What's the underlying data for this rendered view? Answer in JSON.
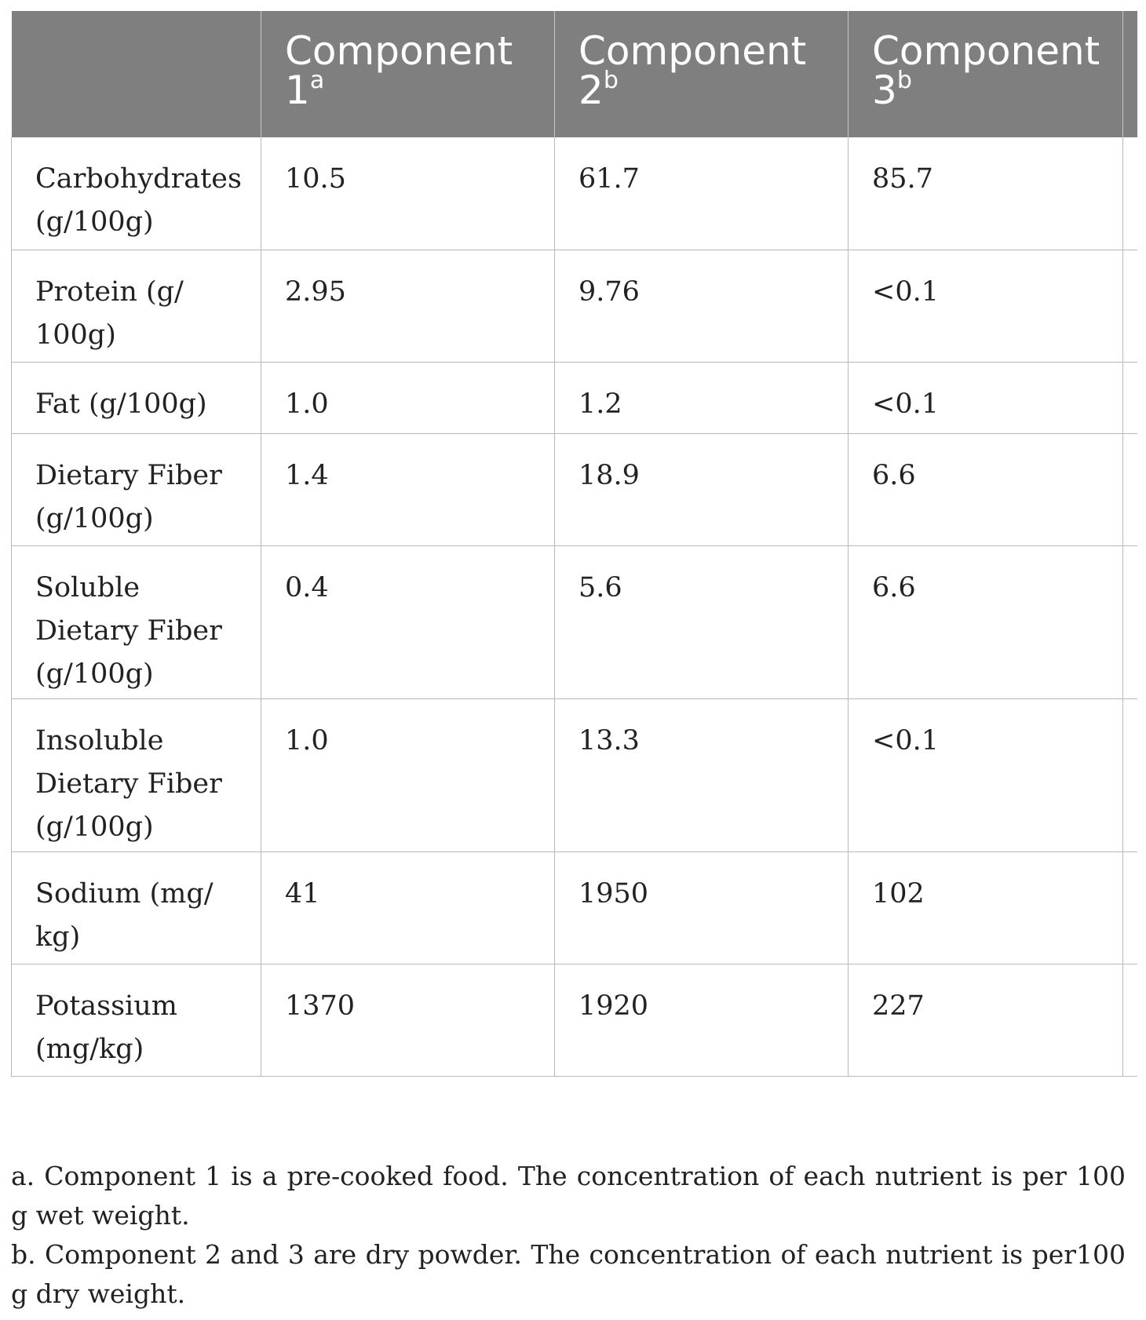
{
  "table": {
    "headers": [
      {
        "label": "",
        "sup": ""
      },
      {
        "label": "Component 1",
        "sup": "a"
      },
      {
        "label": "Component 2",
        "sup": "b"
      },
      {
        "label": "Component 3",
        "sup": "b"
      }
    ],
    "rows": [
      {
        "label": "Carbohydrates (g/100g)",
        "values": [
          "10.5",
          "61.7",
          "85.7"
        ]
      },
      {
        "label": "Protein (g/ 100g)",
        "values": [
          "2.95",
          "9.76",
          "<0.1"
        ]
      },
      {
        "label": "Fat (g/100g)",
        "values": [
          "1.0",
          "1.2",
          "<0.1"
        ]
      },
      {
        "label": "Dietary Fiber (g/100g)",
        "values": [
          "1.4",
          "18.9",
          "6.6"
        ]
      },
      {
        "label": "Soluble Dietary Fiber (g/100g)",
        "values": [
          "0.4",
          "5.6",
          "6.6"
        ]
      },
      {
        "label": "Insoluble Dietary Fiber (g/100g)",
        "values": [
          "1.0",
          "13.3",
          "<0.1"
        ]
      },
      {
        "label": "Sodium (mg/ kg)",
        "values": [
          "41",
          "1950",
          "102"
        ]
      },
      {
        "label": "Potassium (mg/kg)",
        "values": [
          "1370",
          "1920",
          "227"
        ]
      }
    ]
  },
  "footnotes": [
    "a. Component 1 is a pre-cooked food. The concentration of each nutrient is per 100 g wet weight.",
    "b. Component 2 and 3 are dry powder. The concentration of each nutrient is per100 g dry weight."
  ],
  "colors": {
    "header_bg": "#7f7f7f",
    "header_text": "#ffffff",
    "grid": "#b8b8b8",
    "text": "#222222"
  }
}
